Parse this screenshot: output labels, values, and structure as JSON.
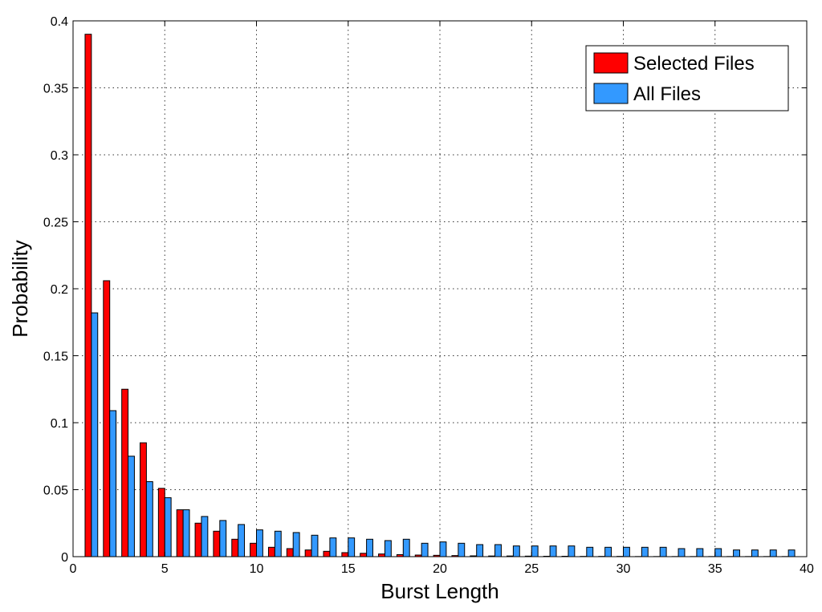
{
  "chart_data": {
    "type": "bar",
    "xlabel": "Burst Length",
    "ylabel": "Probability",
    "xlim": [
      0,
      40
    ],
    "ylim": [
      0,
      0.4
    ],
    "xticks": [
      0,
      5,
      10,
      15,
      20,
      25,
      30,
      35,
      40
    ],
    "yticks": [
      0,
      0.05,
      0.1,
      0.15,
      0.2,
      0.25,
      0.3,
      0.35,
      0.4
    ],
    "xtick_labels": [
      "0",
      "5",
      "10",
      "15",
      "20",
      "25",
      "30",
      "35",
      "40"
    ],
    "ytick_labels": [
      "0",
      "0.05",
      "0.1",
      "0.15",
      "0.2",
      "0.25",
      "0.3",
      "0.35",
      "0.4"
    ],
    "grid": true,
    "legend_position": "top-right",
    "x": [
      1,
      2,
      3,
      4,
      5,
      6,
      7,
      8,
      9,
      10,
      11,
      12,
      13,
      14,
      15,
      16,
      17,
      18,
      19,
      20,
      21,
      22,
      23,
      24,
      25,
      26,
      27,
      28,
      29,
      30,
      31,
      32,
      33,
      34,
      35,
      36,
      37,
      38,
      39
    ],
    "series": [
      {
        "name": "Selected Files",
        "color": "#ff0000",
        "values": [
          0.39,
          0.206,
          0.125,
          0.085,
          0.051,
          0.035,
          0.025,
          0.019,
          0.013,
          0.01,
          0.007,
          0.006,
          0.005,
          0.004,
          0.003,
          0.0025,
          0.002,
          0.0015,
          0.0012,
          0.001,
          0.0008,
          0.0006,
          0.0005,
          0.0005,
          0.0004,
          0.0003,
          0.0003,
          0.0002,
          0.0002,
          0.0002,
          0.0001,
          0.0001,
          0.0001,
          0.0001,
          0.0001,
          0.0001,
          0.0001,
          0.0001,
          0.0001
        ]
      },
      {
        "name": "All Files",
        "color": "#3399ff",
        "values": [
          0.182,
          0.109,
          0.075,
          0.056,
          0.044,
          0.035,
          0.03,
          0.027,
          0.024,
          0.02,
          0.019,
          0.018,
          0.016,
          0.014,
          0.014,
          0.013,
          0.012,
          0.013,
          0.01,
          0.011,
          0.01,
          0.009,
          0.009,
          0.008,
          0.008,
          0.008,
          0.008,
          0.007,
          0.007,
          0.007,
          0.007,
          0.007,
          0.006,
          0.006,
          0.006,
          0.005,
          0.005,
          0.005,
          0.005
        ]
      }
    ]
  }
}
